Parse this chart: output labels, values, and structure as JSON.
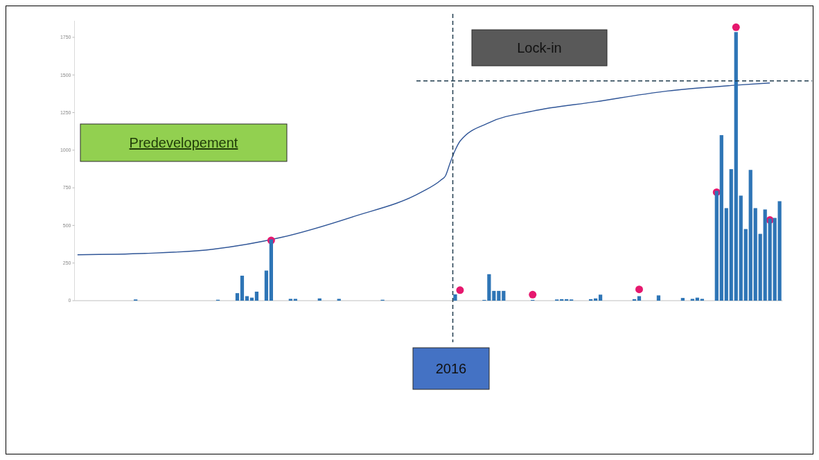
{
  "chart_data": {
    "type": "bar",
    "categories": [
      null,
      null,
      null,
      null,
      null,
      null,
      null,
      null,
      null,
      null,
      null,
      null,
      null,
      null,
      null,
      null,
      null,
      null,
      null,
      null,
      null,
      null,
      null,
      null,
      null,
      null,
      null,
      null,
      null,
      null,
      null,
      null,
      null,
      null,
      null,
      null,
      null,
      null,
      null,
      null,
      null,
      null,
      null,
      null,
      null,
      null,
      null,
      null,
      null,
      null,
      null,
      null,
      null,
      null,
      null,
      null,
      null,
      null,
      null,
      null,
      null,
      null,
      null,
      null,
      null,
      null,
      null,
      null,
      null,
      null,
      null,
      null,
      null,
      null,
      null,
      null,
      null,
      null,
      null,
      null,
      null,
      null,
      null,
      null,
      null,
      null,
      null,
      null,
      null,
      null,
      null,
      null,
      null,
      null,
      null,
      null,
      null,
      null,
      null,
      null,
      null,
      null,
      null,
      null,
      null,
      null,
      null,
      null,
      null,
      null,
      null,
      null,
      null,
      null,
      null,
      null,
      null,
      null,
      null,
      null,
      null,
      null,
      null,
      null,
      null,
      null,
      null,
      null,
      null,
      null,
      null,
      null,
      null,
      null,
      null,
      null,
      null,
      null,
      null,
      null,
      null,
      null,
      null,
      null,
      null,
      null
    ],
    "ylim": [
      0,
      1860
    ],
    "yticks": [
      0,
      250,
      500,
      750,
      1000,
      1250,
      1500,
      1750
    ],
    "tick_labels": "y",
    "series": [
      {
        "color": "#2e75b6",
        "values": [
          0,
          0,
          0,
          0,
          0,
          0,
          0,
          0,
          0,
          0,
          0,
          0,
          8,
          0,
          0,
          0,
          0,
          0,
          0,
          0,
          0,
          0,
          0,
          0,
          0,
          0,
          0,
          0,
          0,
          6,
          0,
          0,
          0,
          50,
          166,
          30,
          20,
          60,
          0,
          200,
          407,
          0,
          0,
          0,
          12,
          12,
          0,
          0,
          0,
          0,
          15,
          0,
          0,
          0,
          12,
          0,
          0,
          0,
          0,
          0,
          0,
          0,
          0,
          6,
          0,
          0,
          0,
          0,
          0,
          0,
          0,
          0,
          0,
          0,
          0,
          0,
          0,
          0,
          42,
          0,
          0,
          0,
          0,
          0,
          5,
          176,
          65,
          65,
          65,
          0,
          0,
          0,
          0,
          0,
          5,
          0,
          0,
          0,
          0,
          8,
          10,
          10,
          8,
          0,
          0,
          0,
          10,
          15,
          40,
          0,
          0,
          0,
          0,
          0,
          0,
          10,
          30,
          0,
          0,
          0,
          35,
          0,
          0,
          0,
          0,
          18,
          0,
          12,
          20,
          12,
          0,
          0,
          730,
          1100,
          615,
          874,
          1785,
          698,
          476,
          869,
          615,
          444,
          606,
          546,
          550,
          661
        ]
      },
      {
        "type": "line",
        "color": "#2f5597",
        "values": [
          305,
          null,
          null,
          null,
          null,
          null,
          null,
          null,
          null,
          null,
          null,
          null,
          null,
          null,
          314,
          null,
          null,
          null,
          null,
          null,
          null,
          null,
          null,
          null,
          null,
          null,
          null,
          null,
          342,
          null,
          null,
          null,
          null,
          null,
          null,
          null,
          null,
          null,
          null,
          null,
          null,
          null,
          420,
          null,
          null,
          null,
          null,
          null,
          null,
          null,
          null,
          null,
          null,
          null,
          null,
          null,
          null,
          559,
          null,
          null,
          null,
          null,
          null,
          null,
          null,
          null,
          null,
          null,
          null,
          null,
          null,
          721,
          null,
          null,
          null,
          800,
          830,
          920,
          1000,
          1060,
          null,
          null,
          null,
          null,
          null,
          1183,
          null,
          null,
          null,
          null,
          null,
          null,
          null,
          null,
          1260,
          null,
          null,
          null,
          null,
          null,
          null,
          null,
          null,
          null,
          null,
          null,
          null,
          1322,
          null,
          null,
          null,
          null,
          null,
          null,
          null,
          null,
          null,
          null,
          null,
          null,
          null,
          1390,
          null,
          null,
          null,
          null,
          null,
          null,
          null,
          null,
          null,
          null,
          null,
          null,
          null,
          1430,
          null,
          null,
          null,
          null,
          null,
          null,
          null,
          1447,
          null,
          null
        ]
      },
      {
        "type": "scatter",
        "color": "#e6186e",
        "marker": "circle",
        "values": [
          null,
          null,
          null,
          null,
          null,
          null,
          null,
          null,
          null,
          null,
          null,
          null,
          null,
          null,
          null,
          null,
          null,
          null,
          null,
          null,
          null,
          null,
          null,
          null,
          null,
          null,
          null,
          null,
          null,
          null,
          null,
          null,
          null,
          null,
          null,
          null,
          null,
          null,
          null,
          null,
          400,
          null,
          null,
          null,
          null,
          null,
          null,
          null,
          null,
          null,
          null,
          null,
          null,
          null,
          null,
          null,
          null,
          null,
          null,
          null,
          null,
          null,
          null,
          null,
          null,
          null,
          null,
          null,
          null,
          null,
          null,
          null,
          null,
          null,
          null,
          null,
          null,
          null,
          null,
          70,
          null,
          null,
          null,
          null,
          null,
          null,
          null,
          null,
          null,
          null,
          null,
          null,
          null,
          null,
          40,
          null,
          null,
          null,
          null,
          null,
          null,
          null,
          null,
          null,
          null,
          null,
          null,
          null,
          null,
          null,
          null,
          null,
          null,
          null,
          null,
          null,
          75,
          null,
          null,
          null,
          null,
          null,
          null,
          null,
          null,
          null,
          null,
          null,
          null,
          null,
          null,
          null,
          721,
          null,
          null,
          null,
          1817,
          null,
          null,
          null,
          null,
          null,
          null,
          536,
          null,
          null
        ]
      }
    ],
    "ref_lines": [
      {
        "axis": "y",
        "value": 1461,
        "line_style": "dashed"
      }
    ],
    "annotations": [
      "Predevelopement",
      "Lock-in",
      "2016"
    ]
  }
}
